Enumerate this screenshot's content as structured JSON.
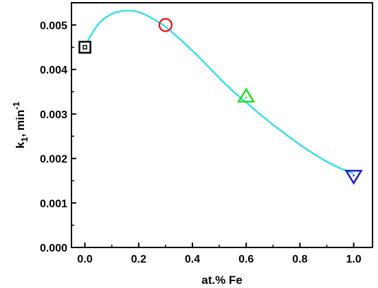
{
  "chart_data": {
    "type": "scatter",
    "xlabel": "at.% Fe",
    "ylabel_main": "k",
    "ylabel_sub": "1",
    "ylabel_rest": ", min",
    "ylabel_sup": "-1",
    "xlim": [
      -0.05,
      1.07
    ],
    "ylim": [
      0.0,
      0.0055
    ],
    "x_ticks": [
      "0.0",
      "0.2",
      "0.4",
      "0.6",
      "0.8",
      "1.0"
    ],
    "y_ticks": [
      "0.000",
      "0.001",
      "0.002",
      "0.003",
      "0.004",
      "0.005"
    ],
    "grid": false,
    "points": [
      {
        "x": 0.0,
        "y": 0.0045,
        "marker": "square-dot",
        "color": "#000000"
      },
      {
        "x": 0.3,
        "y": 0.005,
        "marker": "circle",
        "color": "#ee1c1c"
      },
      {
        "x": 0.6,
        "y": 0.0034,
        "marker": "triangle-up-dot",
        "color": "#22dd22"
      },
      {
        "x": 1.0,
        "y": 0.0016,
        "marker": "triangle-down-dot",
        "color": "#1a1acc"
      }
    ],
    "fit_curve": {
      "color": "#33e0e8",
      "x": [
        0.0,
        0.05,
        0.1,
        0.15,
        0.2,
        0.25,
        0.3,
        0.35,
        0.4,
        0.45,
        0.5,
        0.55,
        0.6,
        0.65,
        0.7,
        0.75,
        0.8,
        0.85,
        0.9,
        0.95,
        1.0
      ],
      "y": [
        0.00454,
        0.00502,
        0.00525,
        0.00532,
        0.00529,
        0.00515,
        0.00496,
        0.0047,
        0.00442,
        0.00412,
        0.00381,
        0.00352,
        0.00326,
        0.003,
        0.00276,
        0.00253,
        0.00231,
        0.00211,
        0.00193,
        0.00178,
        0.00166
      ]
    }
  }
}
